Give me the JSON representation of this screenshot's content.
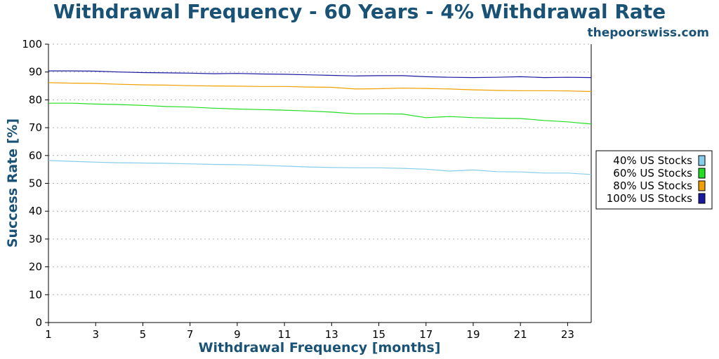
{
  "chart_data": {
    "type": "line",
    "title": "Withdrawal Frequency - 60 Years - 4% Withdrawal Rate",
    "source": "thepoorswiss.com",
    "xlabel": "Withdrawal Frequency [months]",
    "ylabel": "Success Rate [%]",
    "xlim": [
      1,
      24
    ],
    "ylim": [
      0,
      100
    ],
    "xticks": [
      1,
      3,
      5,
      7,
      9,
      11,
      13,
      15,
      17,
      19,
      21,
      23
    ],
    "yticks": [
      0,
      10,
      20,
      30,
      40,
      50,
      60,
      70,
      80,
      90,
      100
    ],
    "grid": "horizontal-dotted",
    "legend_position": "right",
    "x": [
      1,
      2,
      3,
      4,
      5,
      6,
      7,
      8,
      9,
      10,
      11,
      12,
      13,
      14,
      15,
      16,
      17,
      18,
      19,
      20,
      21,
      22,
      23,
      24
    ],
    "series": [
      {
        "name": "40% US Stocks",
        "color": "#87ceeb",
        "values": [
          58.2,
          57.9,
          57.6,
          57.4,
          57.3,
          57.2,
          57.0,
          56.8,
          56.7,
          56.5,
          56.2,
          55.9,
          55.7,
          55.6,
          55.6,
          55.4,
          55.1,
          54.4,
          54.8,
          54.2,
          54.1,
          53.7,
          53.7,
          53.2
        ]
      },
      {
        "name": "60% US Stocks",
        "color": "#22dd22",
        "values": [
          78.8,
          78.8,
          78.5,
          78.3,
          78.0,
          77.6,
          77.4,
          77.0,
          76.7,
          76.5,
          76.3,
          76.0,
          75.6,
          75.0,
          75.0,
          74.9,
          73.6,
          74.0,
          73.6,
          73.4,
          73.3,
          72.6,
          72.1,
          71.3
        ]
      },
      {
        "name": "80% US Stocks",
        "color": "#f0a000",
        "values": [
          86.2,
          86.0,
          85.9,
          85.6,
          85.4,
          85.3,
          85.1,
          85.0,
          84.9,
          84.8,
          84.8,
          84.6,
          84.5,
          83.9,
          84.0,
          84.2,
          84.1,
          83.9,
          83.6,
          83.4,
          83.3,
          83.3,
          83.2,
          83.0
        ]
      },
      {
        "name": "100% US Stocks",
        "color": "#1a1aa0",
        "values": [
          90.4,
          90.4,
          90.3,
          90.0,
          89.8,
          89.7,
          89.6,
          89.4,
          89.5,
          89.3,
          89.2,
          89.0,
          88.8,
          88.6,
          88.7,
          88.7,
          88.3,
          88.1,
          88.0,
          88.1,
          88.3,
          88.0,
          88.1,
          88.0
        ]
      }
    ]
  }
}
